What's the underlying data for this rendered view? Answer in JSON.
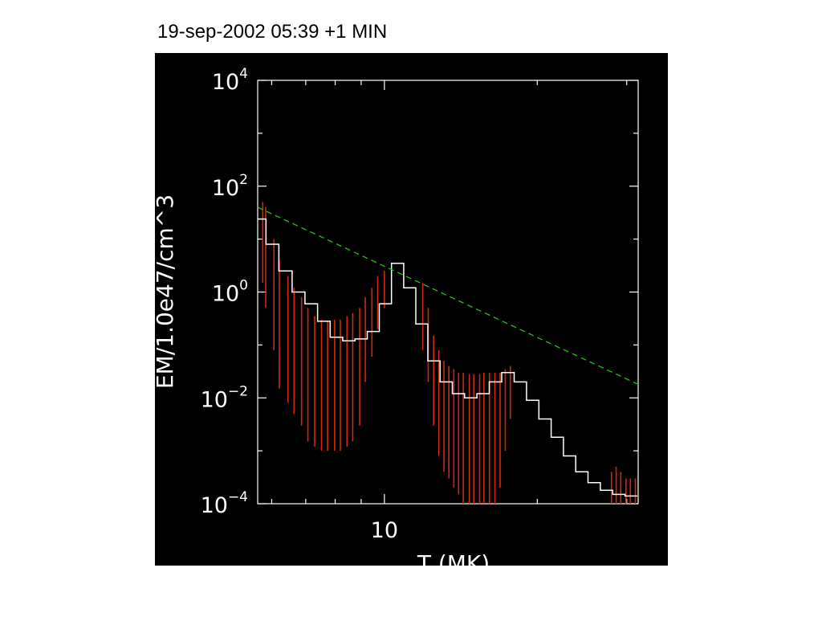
{
  "page": {
    "title": "19-sep-2002 05:39 +1 MIN"
  },
  "chart_data": {
    "type": "line",
    "xlabel": "T (MK)",
    "ylabel": "EM/1.0e47/cm^3",
    "xscale": "log",
    "yscale": "log",
    "xlim": [
      5.63,
      31.6
    ],
    "ylim": [
      0.0001,
      10000
    ],
    "x_ticks": [
      {
        "value": 10,
        "label": "10"
      }
    ],
    "y_ticks": [
      {
        "value": 0.0001,
        "label": "10",
        "exp": "−4"
      },
      {
        "value": 0.01,
        "label": "10",
        "exp": "−2"
      },
      {
        "value": 1,
        "label": "10",
        "exp": "0"
      },
      {
        "value": 100,
        "label": "10",
        "exp": "2"
      },
      {
        "value": 10000,
        "label": "10",
        "exp": "4"
      }
    ],
    "grid": false,
    "colors": {
      "background": "#000000",
      "axes": "#ffffff",
      "em_curve": "#ffffff",
      "error_bars": "#d02810",
      "fit_line": "#22c022"
    },
    "series": [
      {
        "style": "step",
        "color": "#ffffff",
        "x": [
          5.69,
          6.01,
          6.39,
          6.78,
          7.18,
          7.6,
          8.05,
          8.51,
          9.0,
          9.51,
          10.04,
          10.62,
          11.22,
          11.85,
          12.52,
          13.24,
          13.99,
          14.79,
          15.64,
          16.55,
          17.51,
          18.52,
          19.59,
          20.72,
          21.9,
          23.16,
          24.48,
          25.89,
          27.38,
          28.95,
          30.61
        ],
        "y": [
          24,
          8,
          2.5,
          1.0,
          0.6,
          0.28,
          0.14,
          0.12,
          0.13,
          0.18,
          0.6,
          3.5,
          1.2,
          0.25,
          0.05,
          0.02,
          0.012,
          0.01,
          0.012,
          0.02,
          0.03,
          0.02,
          0.009,
          0.004,
          0.0018,
          0.0008,
          0.0004,
          0.00025,
          0.00018,
          0.00015,
          0.00014
        ]
      },
      {
        "style": "error_bars",
        "color": "#d02810",
        "x": [
          5.76,
          5.84,
          6.06,
          6.21,
          6.46,
          6.64,
          6.87,
          7.07,
          7.29,
          7.52,
          7.73,
          7.98,
          8.19,
          8.44,
          8.66,
          8.94,
          9.17,
          9.45,
          9.7,
          10.0,
          11.9,
          12.2,
          12.5,
          12.8,
          13.1,
          13.4,
          13.7,
          14.0,
          14.3,
          14.7,
          15.0,
          15.4,
          15.7,
          16.1,
          16.5,
          16.9,
          17.3,
          17.7,
          28.0,
          28.6,
          29.2,
          29.9,
          30.5,
          31.2
        ],
        "lo": [
          1.5,
          0.5,
          0.08,
          0.015,
          0.008,
          0.005,
          0.003,
          0.0015,
          0.0012,
          0.001,
          0.001,
          0.001,
          0.001,
          0.0012,
          0.0015,
          0.003,
          0.02,
          0.06,
          0.2,
          0.5,
          0.08,
          0.02,
          0.003,
          0.0008,
          0.0004,
          0.0003,
          0.0002,
          0.00015,
          0.0001,
          0.0001,
          0.0001,
          0.0001,
          0.0001,
          0.0001,
          0.0001,
          0.0002,
          0.001,
          0.004,
          0.0001,
          0.0001,
          0.0001,
          0.0001,
          0.0001,
          0.0001
        ],
        "hi": [
          50,
          40,
          10,
          4,
          2,
          1.2,
          0.8,
          0.5,
          0.35,
          0.3,
          0.28,
          0.3,
          0.3,
          0.35,
          0.4,
          0.5,
          0.8,
          1.2,
          2,
          2.5,
          1.5,
          0.5,
          0.15,
          0.08,
          0.05,
          0.04,
          0.035,
          0.03,
          0.03,
          0.028,
          0.028,
          0.028,
          0.03,
          0.03,
          0.03,
          0.03,
          0.035,
          0.04,
          0.0004,
          0.0005,
          0.0004,
          0.0003,
          0.0003,
          0.0003
        ]
      },
      {
        "style": "dashed",
        "color": "#22c022",
        "x": [
          5.63,
          31.6
        ],
        "y": [
          40,
          0.018
        ]
      }
    ]
  }
}
